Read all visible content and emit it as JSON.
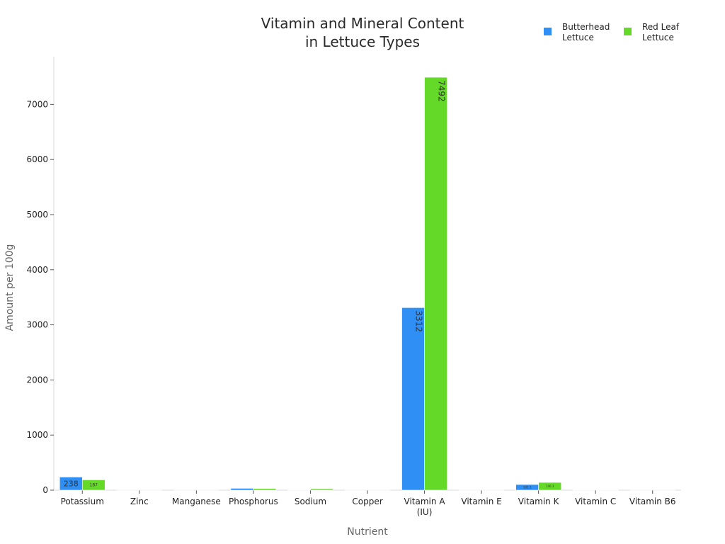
{
  "chart_data": {
    "type": "bar",
    "title": [
      "Vitamin and Mineral Content",
      "in Lettuce Types"
    ],
    "xlabel": "Nutrient",
    "ylabel": "Amount per 100g",
    "categories": [
      [
        "Potassium"
      ],
      [
        "Zinc"
      ],
      [
        "Manganese"
      ],
      [
        "Phosphorus"
      ],
      [
        "Sodium"
      ],
      [
        "Copper"
      ],
      [
        "Vitamin A",
        "(IU)"
      ],
      [
        "Vitamin E"
      ],
      [
        "Vitamin K"
      ],
      [
        "Vitamin C"
      ],
      [
        "Vitamin B6"
      ]
    ],
    "yticks": [
      0,
      1000,
      2000,
      3000,
      4000,
      5000,
      6000,
      7000
    ],
    "ylim": [
      0,
      7866
    ],
    "grid": false,
    "legend_position": "top-right",
    "series": [
      {
        "name": [
          "Butterhead",
          "Lettuce"
        ],
        "color": "#2f8ff5",
        "values": [
          238,
          0.2,
          0.18,
          33,
          5,
          0.02,
          3312,
          0.18,
          102.3,
          3.7,
          0.08
        ],
        "labels": [
          "238",
          "",
          "",
          "",
          "",
          "",
          "3312",
          "",
          "102.3",
          "",
          ""
        ]
      },
      {
        "name": [
          "Red Leaf",
          "Lettuce"
        ],
        "color": "#65d927",
        "values": [
          187,
          0.2,
          0.2,
          28,
          25,
          0.03,
          7492,
          0.15,
          140.3,
          3.7,
          0.1
        ],
        "labels": [
          "187",
          "",
          "",
          "",
          "",
          "",
          "7492",
          "",
          "140.3",
          "",
          ""
        ]
      }
    ]
  }
}
